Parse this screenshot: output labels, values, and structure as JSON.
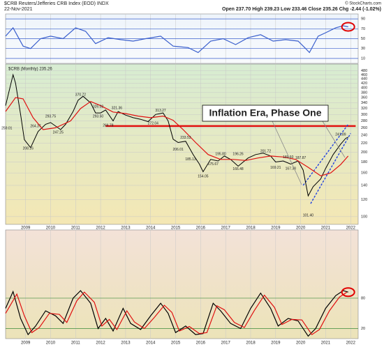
{
  "header": {
    "symbol": "$CRB Reuters/Jefferies CRB Index (EOD) INDX",
    "date": "22-Nov-2021",
    "quote": "Open 237.70  High 239.23  Low 233.46  Close 235.26  Chg -2.44 (-1.02%)",
    "credit": "© StockCharts.com"
  },
  "chart_data": [
    {
      "type": "line",
      "xlim": [
        2008.2,
        2022.3
      ],
      "xticks": [
        2009,
        2010,
        2011,
        2012,
        2013,
        2014,
        2015,
        2016,
        2017,
        2018,
        2019,
        2020,
        2021,
        2022
      ],
      "ylim": [
        0,
        100
      ],
      "yticks": [
        10,
        30,
        50,
        70,
        90
      ],
      "series": [
        {
          "color": "#3a5fcd",
          "x": [
            2008.2,
            2008.5,
            2008.9,
            2009.2,
            2009.6,
            2010.0,
            2010.5,
            2011.0,
            2011.4,
            2011.8,
            2012.3,
            2012.8,
            2013.3,
            2013.8,
            2014.4,
            2014.9,
            2015.5,
            2015.9,
            2016.4,
            2016.9,
            2017.4,
            2017.9,
            2018.4,
            2018.9,
            2019.4,
            2019.9,
            2020.2,
            2020.35,
            2020.7,
            2021.0,
            2021.4,
            2021.7,
            2021.9
          ],
          "values": [
            55,
            72,
            35,
            30,
            50,
            55,
            50,
            72,
            65,
            40,
            52,
            48,
            45,
            50,
            55,
            35,
            32,
            22,
            45,
            50,
            38,
            52,
            58,
            45,
            48,
            45,
            30,
            22,
            55,
            62,
            72,
            76,
            74
          ]
        }
      ]
    },
    {
      "type": "line",
      "title": "$CRB (Monthly) 235.26",
      "log": true,
      "xlim": [
        2008.2,
        2022.3
      ],
      "xticks": [
        2009,
        2010,
        2011,
        2012,
        2013,
        2014,
        2015,
        2016,
        2017,
        2018,
        2019,
        2020,
        2021,
        2022
      ],
      "ylim": [
        92,
        516
      ],
      "yticks": [
        100,
        120,
        140,
        160,
        180,
        200,
        220,
        240,
        260,
        280,
        300,
        320,
        340,
        360,
        380,
        400,
        420,
        440,
        460,
        480
      ],
      "series": [
        {
          "color": "#000000",
          "x": [
            2008.2,
            2008.5,
            2008.6,
            2008.8,
            2008.95,
            2009.2,
            2009.5,
            2009.8,
            2010.0,
            2010.4,
            2010.6,
            2010.9,
            2011.1,
            2011.3,
            2011.6,
            2011.8,
            2012.0,
            2012.2,
            2012.5,
            2012.7,
            2013.0,
            2013.3,
            2013.6,
            2013.9,
            2014.2,
            2014.5,
            2014.7,
            2014.9,
            2015.1,
            2015.4,
            2015.7,
            2015.95,
            2016.1,
            2016.4,
            2016.7,
            2016.95,
            2017.2,
            2017.5,
            2017.9,
            2018.2,
            2018.5,
            2018.8,
            2019.0,
            2019.3,
            2019.6,
            2019.9,
            2020.1,
            2020.3,
            2020.5,
            2020.8,
            2021.0,
            2021.3,
            2021.6,
            2021.8,
            2021.9
          ],
          "values": [
            330,
            460,
            420,
            300,
            229,
            210,
            250,
            270,
            275,
            255,
            270,
            310,
            350,
            365,
            340,
            305,
            305,
            315,
            280,
            310,
            298,
            290,
            285,
            278,
            300,
            305,
            280,
            230,
            222,
            225,
            195,
            176,
            162,
            185,
            182,
            192,
            185,
            172,
            188,
            195,
            198,
            192,
            180,
            182,
            176,
            182,
            165,
            125,
            138,
            150,
            168,
            195,
            218,
            232,
            235.26
          ]
        },
        {
          "color": "#e01010",
          "x": [
            2008.2,
            2008.6,
            2008.9,
            2009.3,
            2009.7,
            2010.2,
            2010.8,
            2011.2,
            2011.6,
            2012.0,
            2012.5,
            2013.0,
            2013.5,
            2014.0,
            2014.5,
            2014.9,
            2015.3,
            2015.8,
            2016.3,
            2016.8,
            2017.3,
            2017.8,
            2018.3,
            2018.8,
            2019.3,
            2019.8,
            2020.3,
            2020.8,
            2021.2,
            2021.6,
            2021.9
          ],
          "values": [
            310,
            360,
            355,
            290,
            255,
            260,
            280,
            320,
            345,
            330,
            308,
            303,
            295,
            290,
            295,
            282,
            255,
            222,
            195,
            185,
            185,
            183,
            188,
            192,
            190,
            185,
            170,
            155,
            160,
            175,
            192
          ]
        }
      ],
      "hline": {
        "value": 265,
        "x": [
          2012.2,
          2022.2
        ],
        "color": "#e01010"
      },
      "trendlines": [
        {
          "x": [
            2020.1,
            2021.9
          ],
          "y": [
            140,
            270
          ],
          "color": "#2040e0"
        },
        {
          "x": [
            2020.4,
            2022.0
          ],
          "y": [
            115,
            245
          ],
          "color": "#2040e0"
        }
      ],
      "annotation": "Inflation Era, Phase One",
      "price_labels": [
        {
          "x": 2008.25,
          "value": 259.01,
          "label": "259.01"
        },
        {
          "x": 2009.1,
          "value": 208.16,
          "label": "208.16"
        },
        {
          "x": 2009.4,
          "value": 264.37,
          "label": "264.37"
        },
        {
          "x": 2010.0,
          "value": 293.75,
          "label": "293.75"
        },
        {
          "x": 2010.3,
          "value": 247.25,
          "label": "247.25"
        },
        {
          "x": 2011.2,
          "value": 370.72,
          "label": "370.72"
        },
        {
          "x": 2011.9,
          "value": 326.02,
          "label": "326.02"
        },
        {
          "x": 2011.9,
          "value": 293.5,
          "label": "293.50"
        },
        {
          "x": 2012.65,
          "value": 321.36,
          "label": "321.36"
        },
        {
          "x": 2012.3,
          "value": 266.78,
          "label": "266.78"
        },
        {
          "x": 2014.4,
          "value": 313.27,
          "label": "313.27"
        },
        {
          "x": 2014.1,
          "value": 272.04,
          "label": "272.04"
        },
        {
          "x": 2015.4,
          "value": 233.53,
          "label": "233.53"
        },
        {
          "x": 2015.1,
          "value": 206.01,
          "label": "206.01"
        },
        {
          "x": 2015.6,
          "value": 185.13,
          "label": "185.13"
        },
        {
          "x": 2016.1,
          "value": 154.05,
          "label": "154.05"
        },
        {
          "x": 2016.5,
          "value": 175.67,
          "label": "175.67"
        },
        {
          "x": 2016.8,
          "value": 195.8,
          "label": "195.80"
        },
        {
          "x": 2017.5,
          "value": 196.26,
          "label": "196.26"
        },
        {
          "x": 2017.5,
          "value": 166.48,
          "label": "166.48"
        },
        {
          "x": 2018.6,
          "value": 201.72,
          "label": "201.72"
        },
        {
          "x": 2019.0,
          "value": 169.21,
          "label": "169.21"
        },
        {
          "x": 2019.6,
          "value": 167.38,
          "label": "167.38"
        },
        {
          "x": 2019.5,
          "value": 189.6,
          "label": "189.60"
        },
        {
          "x": 2020.0,
          "value": 187.87,
          "label": "187.87"
        },
        {
          "x": 2020.3,
          "value": 101.4,
          "label": "101.40"
        },
        {
          "x": 2021.6,
          "value": 241.89,
          "label": "241.89"
        }
      ]
    },
    {
      "type": "line",
      "xlim": [
        2008.2,
        2022.3
      ],
      "xticks": [
        2009,
        2010,
        2011,
        2012,
        2013,
        2014,
        2015,
        2016,
        2017,
        2018,
        2019,
        2020,
        2021,
        2022
      ],
      "ylim": [
        0,
        215
      ],
      "yticks": [
        20,
        80
      ],
      "series": [
        {
          "color": "#000000",
          "x": [
            2008.2,
            2008.5,
            2008.8,
            2009.1,
            2009.4,
            2009.8,
            2010.2,
            2010.5,
            2010.9,
            2011.2,
            2011.6,
            2011.9,
            2012.2,
            2012.5,
            2012.9,
            2013.2,
            2013.6,
            2014.0,
            2014.4,
            2014.7,
            2015.0,
            2015.4,
            2015.8,
            2016.1,
            2016.5,
            2016.8,
            2017.2,
            2017.6,
            2018.0,
            2018.4,
            2018.8,
            2019.1,
            2019.5,
            2019.9,
            2020.3,
            2020.6,
            2021.0,
            2021.4,
            2021.7,
            2021.9
          ],
          "values": [
            60,
            93,
            40,
            8,
            25,
            55,
            45,
            30,
            80,
            95,
            70,
            20,
            40,
            15,
            60,
            30,
            18,
            45,
            70,
            50,
            12,
            25,
            8,
            10,
            70,
            55,
            30,
            20,
            60,
            90,
            60,
            25,
            40,
            35,
            5,
            20,
            60,
            85,
            95,
            92
          ]
        },
        {
          "color": "#e01010",
          "x": [
            2008.2,
            2008.65,
            2008.95,
            2009.25,
            2009.55,
            2009.95,
            2010.35,
            2010.65,
            2011.05,
            2011.35,
            2011.75,
            2012.05,
            2012.35,
            2012.65,
            2013.05,
            2013.35,
            2013.75,
            2014.15,
            2014.55,
            2014.85,
            2015.15,
            2015.55,
            2015.95,
            2016.25,
            2016.65,
            2016.95,
            2017.35,
            2017.75,
            2018.15,
            2018.55,
            2018.95,
            2019.25,
            2019.65,
            2020.05,
            2020.45,
            2020.75,
            2021.15,
            2021.55,
            2021.85
          ],
          "values": [
            50,
            88,
            45,
            12,
            22,
            50,
            48,
            32,
            75,
            92,
            72,
            25,
            38,
            18,
            55,
            33,
            20,
            42,
            66,
            52,
            15,
            24,
            10,
            12,
            65,
            57,
            32,
            22,
            56,
            86,
            62,
            28,
            38,
            37,
            8,
            18,
            55,
            82,
            92
          ]
        }
      ]
    }
  ]
}
